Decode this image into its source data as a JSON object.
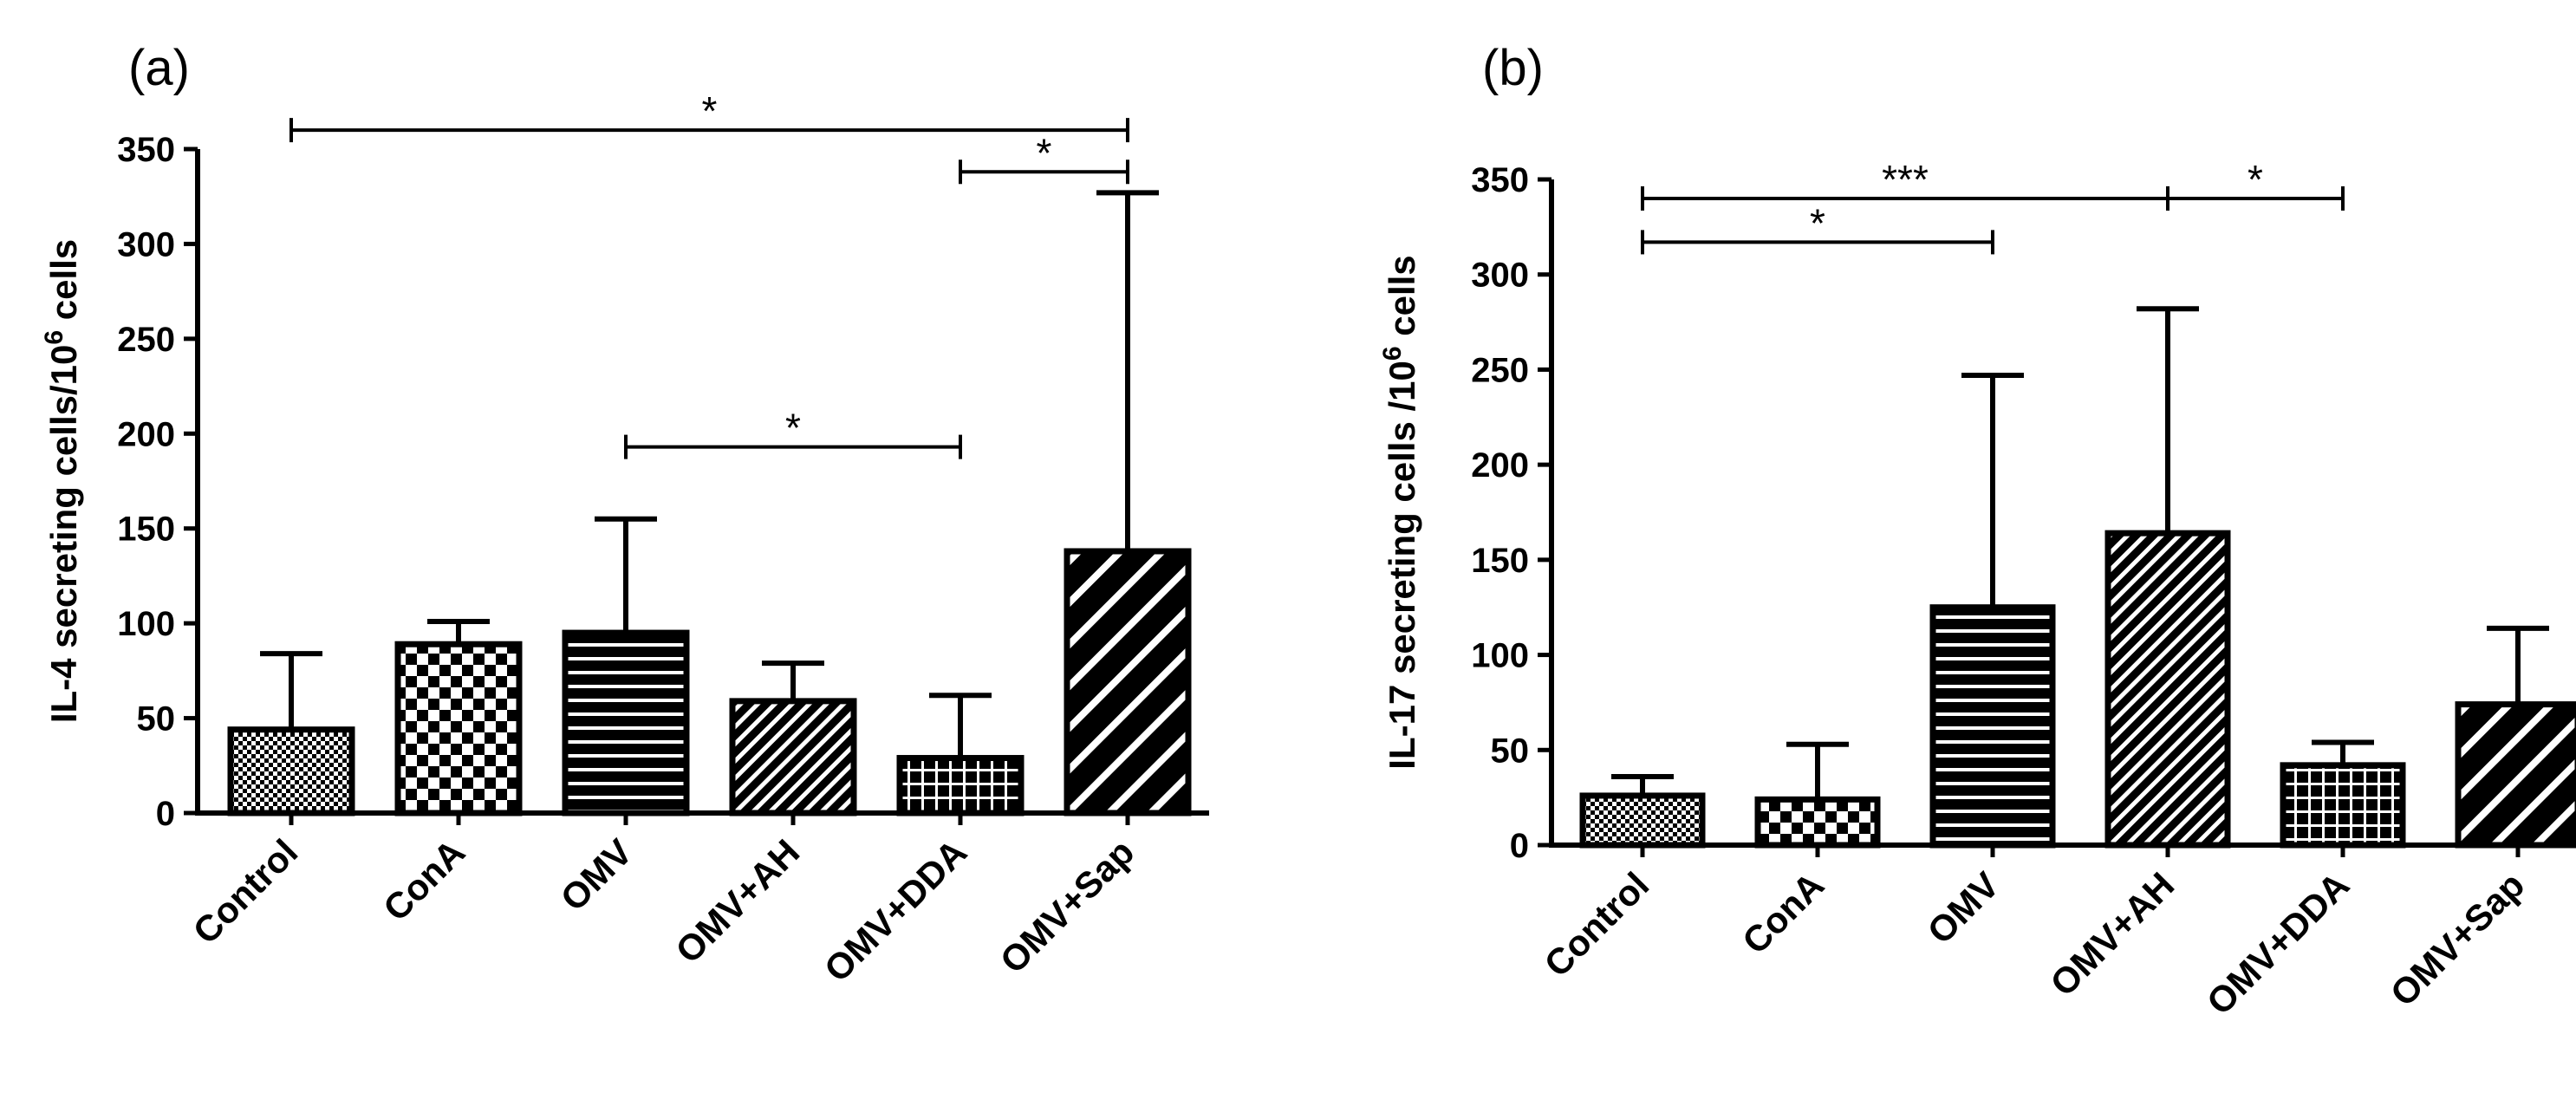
{
  "chart_data": [
    {
      "type": "bar",
      "panel_label": "(a)",
      "title": "",
      "ylabel": {
        "main": "IL-4 secreting cells/10",
        "sup": "6",
        "tail": " cells"
      },
      "xlabel": "",
      "categories": [
        "Control",
        "ConA",
        "OMV",
        "OMV+AH",
        "OMV+DDA",
        "OMV+Sap"
      ],
      "series": [
        {
          "name": "mean",
          "values": [
            44,
            89,
            95,
            59,
            29,
            138
          ],
          "error_upper": [
            84,
            101,
            155,
            79,
            62,
            327
          ]
        }
      ],
      "patterns": [
        "fine-check",
        "checker",
        "horizontal",
        "diag-fine",
        "grid",
        "diag-wide"
      ],
      "yticks": [
        "0",
        "50",
        "100",
        "150",
        "200",
        "250",
        "300",
        "350"
      ],
      "ylim": [
        0,
        350
      ],
      "grid": false,
      "significance": [
        {
          "from": 0,
          "to": 5,
          "label": "*",
          "y": 360
        },
        {
          "from": 4,
          "to": 5,
          "label": "*",
          "y": 338
        },
        {
          "from": 2,
          "to": 4,
          "label": "*",
          "y": 193
        }
      ]
    },
    {
      "type": "bar",
      "panel_label": "(b)",
      "title": "",
      "ylabel": {
        "main": "IL-17 secreting cells /10",
        "sup": "6",
        "tail": " cells"
      },
      "xlabel": "",
      "categories": [
        "Control",
        "ConA",
        "OMV",
        "OMV+AH",
        "OMV+DDA",
        "OMV+Sap"
      ],
      "series": [
        {
          "name": "mean",
          "values": [
            26,
            24,
            125,
            164,
            42,
            74
          ],
          "error_upper": [
            36,
            53,
            247,
            282,
            54,
            114
          ]
        }
      ],
      "patterns": [
        "fine-check",
        "checker",
        "horizontal",
        "diag-fine",
        "grid",
        "diag-wide"
      ],
      "yticks": [
        "0",
        "50",
        "100",
        "150",
        "200",
        "250",
        "300",
        "350"
      ],
      "ylim": [
        0,
        350
      ],
      "grid": false,
      "significance": [
        {
          "from": 0,
          "to": 3,
          "label": "***",
          "y": 340
        },
        {
          "from": 0,
          "to": 2,
          "label": "*",
          "y": 317
        },
        {
          "from": 3,
          "to": 4,
          "label": "*",
          "y": 340
        }
      ]
    }
  ]
}
